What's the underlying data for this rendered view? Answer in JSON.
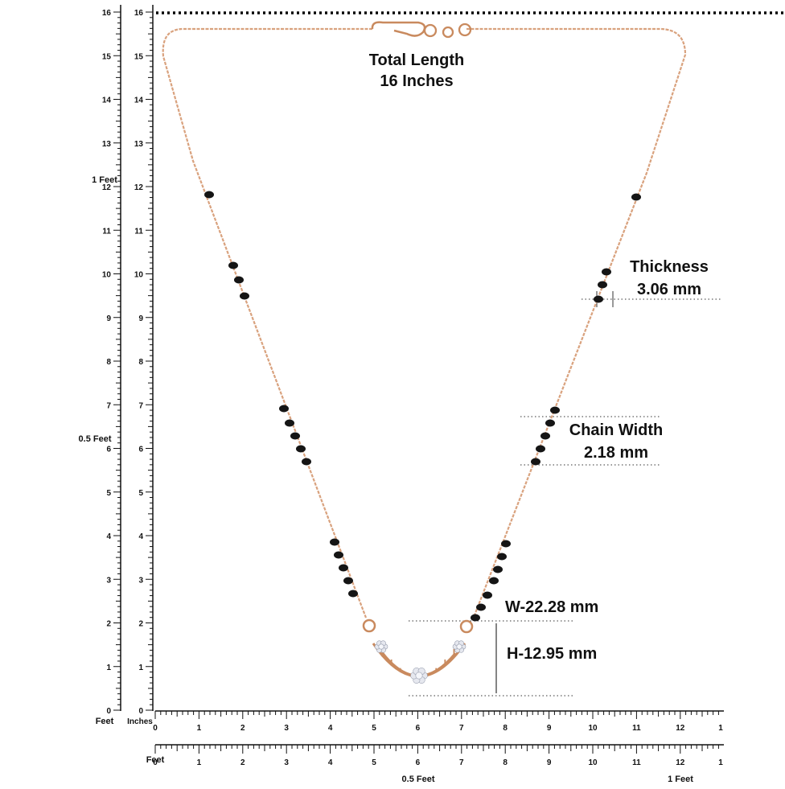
{
  "annotations": {
    "total_length": [
      "Total Length",
      "16 Inches"
    ],
    "thickness": [
      "Thickness",
      "3.06 mm"
    ],
    "chain_width": [
      "Chain Width",
      "2.18 mm"
    ],
    "pendant_width": "W-22.28 mm",
    "pendant_height": "H-12.95 mm"
  },
  "left_ruler": {
    "ticks": [
      "0",
      "1",
      "2",
      "3",
      "4",
      "5",
      "6",
      "7",
      "8",
      "9",
      "10",
      "11",
      "12",
      "13",
      "14",
      "15",
      "16"
    ],
    "half_foot_label": "0.5 Feet",
    "foot_label": "1 Feet",
    "feet_unit": "Feet",
    "inches_unit": "Inches"
  },
  "bottom_ruler": {
    "ticks": [
      "0",
      "1",
      "2",
      "3",
      "4",
      "5",
      "6",
      "7",
      "8",
      "9",
      "10",
      "11",
      "12",
      "1"
    ],
    "half_foot_label": "0.5 Feet",
    "foot_label": "1 Feet",
    "feet_unit": "Feet",
    "inches_unit": "Inches"
  },
  "colors": {
    "chain": "#d9a27e",
    "bead": "#151515",
    "gold": "#c98a5e",
    "diamond": "#e6e8ef",
    "ruler": "#111111",
    "guide": "#333333"
  },
  "icons": [
    "necklace-chain",
    "hook-clasp",
    "black-bead",
    "diamond-cluster-pendant"
  ]
}
